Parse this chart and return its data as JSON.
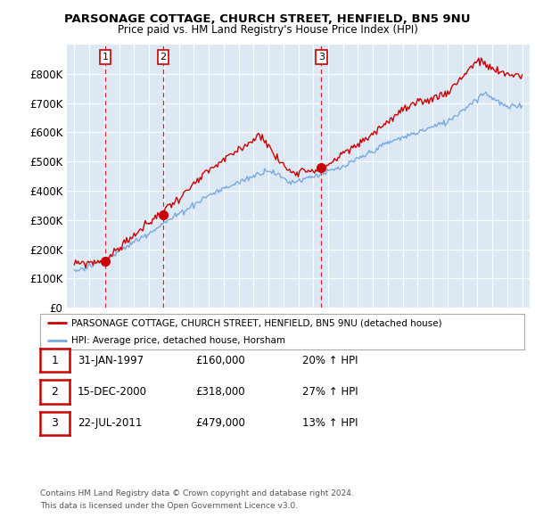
{
  "title1": "PARSONAGE COTTAGE, CHURCH STREET, HENFIELD, BN5 9NU",
  "title2": "Price paid vs. HM Land Registry's House Price Index (HPI)",
  "plot_bg_color": "#dce9f5",
  "sale_color": "#cc0000",
  "hpi_color": "#7aaadd",
  "ylim": [
    0,
    900000
  ],
  "yticks": [
    0,
    100000,
    200000,
    300000,
    400000,
    500000,
    600000,
    700000,
    800000
  ],
  "ytick_labels": [
    "£0",
    "£100K",
    "£200K",
    "£300K",
    "£400K",
    "£500K",
    "£600K",
    "£700K",
    "£800K"
  ],
  "sale_dates": [
    1997.08,
    2000.96,
    2011.55
  ],
  "sale_prices": [
    160000,
    318000,
    479000
  ],
  "sale_labels": [
    "1",
    "2",
    "3"
  ],
  "legend_sale": "PARSONAGE COTTAGE, CHURCH STREET, HENFIELD, BN5 9NU (detached house)",
  "legend_hpi": "HPI: Average price, detached house, Horsham",
  "table_rows": [
    [
      "1",
      "31-JAN-1997",
      "£160,000",
      "20% ↑ HPI"
    ],
    [
      "2",
      "15-DEC-2000",
      "£318,000",
      "27% ↑ HPI"
    ],
    [
      "3",
      "22-JUL-2011",
      "£479,000",
      "13% ↑ HPI"
    ]
  ],
  "footnote1": "Contains HM Land Registry data © Crown copyright and database right 2024.",
  "footnote2": "This data is licensed under the Open Government Licence v3.0.",
  "xlim_start": 1994.5,
  "xlim_end": 2025.5
}
